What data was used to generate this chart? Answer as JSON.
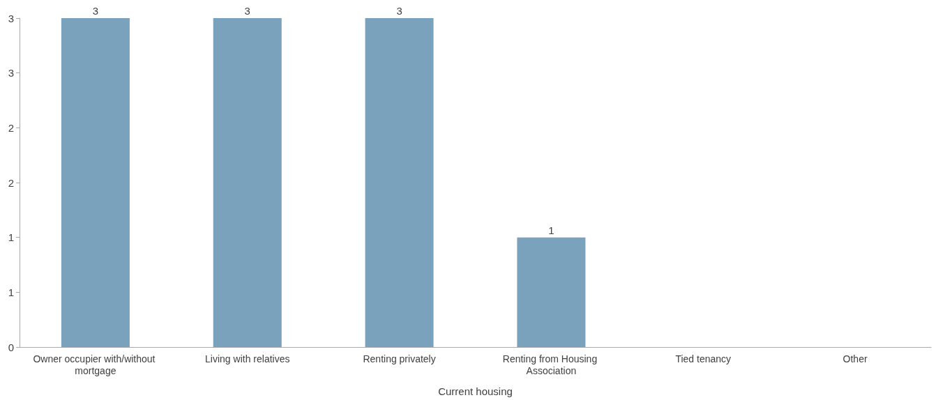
{
  "chart_data": {
    "type": "bar",
    "xlabel": "Current housing",
    "categories": [
      "Owner occupier with/without mortgage",
      "Living with relatives",
      "Renting privately",
      "Renting from Housing Association",
      "Tied tenancy",
      "Other"
    ],
    "values": [
      3,
      3,
      3,
      1,
      0,
      0
    ],
    "value_labels": [
      "3",
      "3",
      "3",
      "1",
      null,
      null
    ],
    "color": "#7ba2bd",
    "ylim": [
      0,
      3
    ],
    "yticks": [
      0,
      {
        "value": 0.5,
        "label": "1"
      },
      1,
      {
        "value": 1.5,
        "label": "2"
      },
      2,
      {
        "value": 2.5,
        "label": "3"
      },
      3
    ],
    "grid": false
  }
}
